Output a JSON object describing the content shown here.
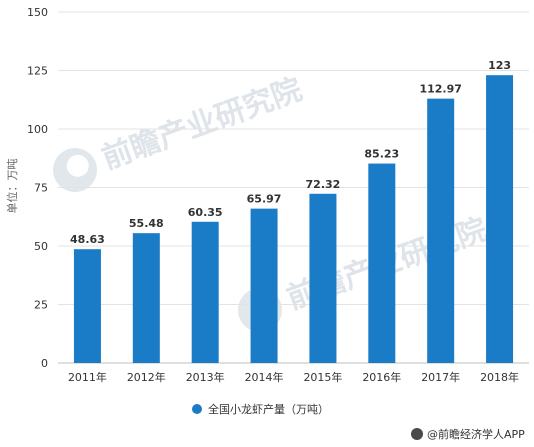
{
  "chart_data": {
    "type": "bar",
    "categories": [
      "2011年",
      "2012年",
      "2013年",
      "2014年",
      "2015年",
      "2016年",
      "2017年",
      "2018年"
    ],
    "values": [
      48.63,
      55.48,
      60.35,
      65.97,
      72.32,
      85.23,
      112.97,
      123
    ],
    "value_labels": [
      "48.63",
      "55.48",
      "60.35",
      "65.97",
      "72.32",
      "85.23",
      "112.97",
      "123"
    ],
    "ylabel": "单位：万吨",
    "ylim": [
      0,
      150
    ],
    "yticks": [
      0,
      25,
      50,
      75,
      100,
      125,
      150
    ],
    "grid": true,
    "legend": {
      "label": "全国小龙虾产量（万吨）",
      "position": "bottom-center"
    },
    "bar_color": "#1a7cc6"
  },
  "watermark": "前瞻产业研究院",
  "source": "@前瞻经济学人APP"
}
